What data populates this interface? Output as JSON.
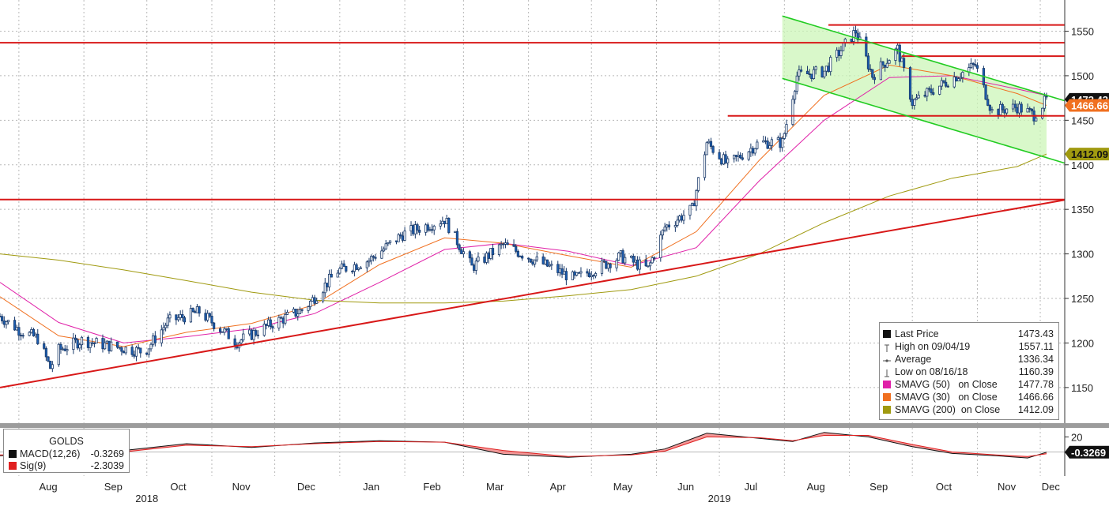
{
  "chart_data": [
    {
      "type": "candlestick",
      "ticker": "GOLDS",
      "ylim": [
        1110,
        1585
      ],
      "yticks": [
        "1150",
        "1200",
        "1250",
        "1300",
        "1350",
        "1400",
        "1450",
        "1500",
        "1550"
      ],
      "month_labels": [
        "Aug",
        "Sep",
        "Oct",
        "Nov",
        "Dec",
        "Jan",
        "Feb",
        "Mar",
        "Apr",
        "May",
        "Jun",
        "Jul",
        "Aug",
        "Sep",
        "Oct",
        "Nov",
        "Dec"
      ],
      "year_labels": [
        "2018",
        "2019"
      ],
      "price_path": [
        [
          "2018-07-23",
          1230
        ],
        [
          "2018-08-01",
          1215
        ],
        [
          "2018-08-10",
          1205
        ],
        [
          "2018-08-16",
          1172
        ],
        [
          "2018-08-20",
          1192
        ],
        [
          "2018-08-31",
          1203
        ],
        [
          "2018-09-15",
          1196
        ],
        [
          "2018-09-30",
          1190
        ],
        [
          "2018-10-11",
          1224
        ],
        [
          "2018-10-26",
          1235
        ],
        [
          "2018-11-13",
          1201
        ],
        [
          "2018-11-30",
          1222
        ],
        [
          "2018-12-15",
          1238
        ],
        [
          "2018-12-31",
          1281
        ],
        [
          "2019-01-15",
          1293
        ],
        [
          "2019-01-31",
          1322
        ],
        [
          "2019-02-20",
          1339
        ],
        [
          "2019-03-05",
          1285
        ],
        [
          "2019-03-20",
          1310
        ],
        [
          "2019-04-05",
          1292
        ],
        [
          "2019-04-23",
          1272
        ],
        [
          "2019-05-15",
          1297
        ],
        [
          "2019-05-28",
          1283
        ],
        [
          "2019-06-05",
          1330
        ],
        [
          "2019-06-18",
          1350
        ],
        [
          "2019-06-25",
          1425
        ],
        [
          "2019-07-05",
          1400
        ],
        [
          "2019-07-20",
          1425
        ],
        [
          "2019-07-31",
          1425
        ],
        [
          "2019-08-07",
          1500
        ],
        [
          "2019-08-20",
          1505
        ],
        [
          "2019-09-04",
          1550
        ],
        [
          "2019-09-12",
          1500
        ],
        [
          "2019-09-24",
          1530
        ],
        [
          "2019-10-01",
          1470
        ],
        [
          "2019-10-15",
          1490
        ],
        [
          "2019-10-31",
          1512
        ],
        [
          "2019-11-08",
          1460
        ],
        [
          "2019-11-20",
          1465
        ],
        [
          "2019-11-28",
          1456
        ],
        [
          "2019-12-04",
          1473
        ]
      ],
      "moving_averages": [
        {
          "name": "SMAVG (50)  on Close",
          "color": "#e020a8",
          "points": [
            [
              "2018-07-23",
              1268
            ],
            [
              "2018-08-20",
              1223
            ],
            [
              "2018-09-20",
              1200
            ],
            [
              "2018-10-20",
              1207
            ],
            [
              "2018-11-20",
              1216
            ],
            [
              "2018-12-20",
              1233
            ],
            [
              "2019-01-20",
              1268
            ],
            [
              "2019-02-20",
              1305
            ],
            [
              "2019-03-20",
              1312
            ],
            [
              "2019-04-20",
              1303
            ],
            [
              "2019-05-20",
              1287
            ],
            [
              "2019-06-20",
              1307
            ],
            [
              "2019-07-20",
              1382
            ],
            [
              "2019-08-20",
              1450
            ],
            [
              "2019-09-20",
              1498
            ],
            [
              "2019-10-20",
              1500
            ],
            [
              "2019-11-20",
              1485
            ],
            [
              "2019-12-04",
              1477.78
            ]
          ]
        },
        {
          "name": "SMAVG (30)  on Close",
          "color": "#f07020",
          "points": [
            [
              "2018-07-23",
              1252
            ],
            [
              "2018-08-20",
              1208
            ],
            [
              "2018-09-20",
              1196
            ],
            [
              "2018-10-20",
              1212
            ],
            [
              "2018-11-20",
              1222
            ],
            [
              "2018-12-20",
              1243
            ],
            [
              "2019-01-20",
              1288
            ],
            [
              "2019-02-20",
              1318
            ],
            [
              "2019-03-20",
              1312
            ],
            [
              "2019-04-20",
              1298
            ],
            [
              "2019-05-20",
              1285
            ],
            [
              "2019-06-20",
              1325
            ],
            [
              "2019-07-20",
              1405
            ],
            [
              "2019-08-20",
              1478
            ],
            [
              "2019-09-20",
              1512
            ],
            [
              "2019-10-20",
              1500
            ],
            [
              "2019-11-20",
              1480
            ],
            [
              "2019-12-04",
              1466.66
            ]
          ]
        },
        {
          "name": "SMAVG (200)  on Close",
          "color": "#a09a10",
          "points": [
            [
              "2018-07-23",
              1300
            ],
            [
              "2018-08-20",
              1293
            ],
            [
              "2018-09-20",
              1282
            ],
            [
              "2018-10-20",
              1270
            ],
            [
              "2018-11-20",
              1257
            ],
            [
              "2018-12-20",
              1248
            ],
            [
              "2019-01-20",
              1245
            ],
            [
              "2019-02-20",
              1245
            ],
            [
              "2019-03-20",
              1247
            ],
            [
              "2019-04-20",
              1253
            ],
            [
              "2019-05-20",
              1260
            ],
            [
              "2019-06-20",
              1275
            ],
            [
              "2019-07-20",
              1300
            ],
            [
              "2019-08-20",
              1335
            ],
            [
              "2019-09-20",
              1365
            ],
            [
              "2019-10-20",
              1385
            ],
            [
              "2019-11-20",
              1398
            ],
            [
              "2019-12-04",
              1412.09
            ]
          ]
        }
      ],
      "horizontal_levels": [
        1537,
        1361,
        1557,
        1522,
        1455
      ],
      "trendline": {
        "from": [
          "2018-07-23",
          1150
        ],
        "to": [
          "2019-12-04",
          1357
        ]
      },
      "channel": {
        "upper": [
          [
            "2019-07-31",
            1567
          ],
          [
            "2019-12-04",
            1478
          ]
        ],
        "lower": [
          [
            "2019-07-31",
            1497
          ],
          [
            "2019-12-04",
            1408
          ]
        ]
      },
      "price_tags": [
        {
          "value": "1473.43",
          "y": 1473.43,
          "background": "#111111",
          "text_color": "#ffffff"
        },
        {
          "value": "1466.66",
          "y": 1466.66,
          "background": "#f07020",
          "text_color": "#ffffff"
        },
        {
          "value": "1412.09",
          "y": 1412.09,
          "background": "#a09a10",
          "text_color": "#111111"
        }
      ],
      "legend": {
        "rows": [
          {
            "label": "Last Price",
            "value": "1473.43",
            "marker": "box",
            "color": "#111111"
          },
          {
            "label": "High on 09/04/19",
            "value": "1557.11",
            "marker": "high",
            "color": "#555555"
          },
          {
            "label": "Average",
            "value": "1336.34",
            "marker": "avg",
            "color": "#555555"
          },
          {
            "label": "Low on 08/16/18",
            "value": "1160.39",
            "marker": "low",
            "color": "#555555"
          },
          {
            "label": "SMAVG (50)   on Close",
            "value": "1477.78",
            "marker": "box",
            "color": "#e020a8"
          },
          {
            "label": "SMAVG (30)   on Close",
            "value": "1466.66",
            "marker": "box",
            "color": "#f07020"
          },
          {
            "label": "SMAVG (200)  on Close",
            "value": "1412.09",
            "marker": "box",
            "color": "#a09a10"
          }
        ]
      }
    },
    {
      "type": "line",
      "ylim": [
        -32,
        32
      ],
      "yticks": [
        "20"
      ],
      "tag": "-0.3269",
      "title": "GOLDS",
      "series": [
        {
          "name": "MACD(12,26)",
          "value": "-0.3269",
          "color": "#111111",
          "points": [
            [
              "2018-07-23",
              -5
            ],
            [
              "2018-08-20",
              -3
            ],
            [
              "2018-09-20",
              2
            ],
            [
              "2018-10-20",
              11
            ],
            [
              "2018-11-20",
              6
            ],
            [
              "2018-12-20",
              12
            ],
            [
              "2019-01-20",
              15
            ],
            [
              "2019-02-20",
              13
            ],
            [
              "2019-03-20",
              -3
            ],
            [
              "2019-04-20",
              -7
            ],
            [
              "2019-05-20",
              -3
            ],
            [
              "2019-06-05",
              4
            ],
            [
              "2019-06-25",
              25
            ],
            [
              "2019-07-20",
              18
            ],
            [
              "2019-08-05",
              14
            ],
            [
              "2019-08-20",
              26
            ],
            [
              "2019-09-10",
              20
            ],
            [
              "2019-10-01",
              7
            ],
            [
              "2019-10-20",
              -2
            ],
            [
              "2019-11-10",
              -5
            ],
            [
              "2019-11-25",
              -8
            ],
            [
              "2019-12-04",
              -0.33
            ]
          ]
        },
        {
          "name": "Sig(9)",
          "value": "-2.3039",
          "color": "#e02020",
          "points": [
            [
              "2018-07-23",
              -4
            ],
            [
              "2018-08-20",
              -3
            ],
            [
              "2018-09-20",
              0
            ],
            [
              "2018-10-20",
              9
            ],
            [
              "2018-11-20",
              7
            ],
            [
              "2018-12-20",
              11
            ],
            [
              "2019-01-20",
              14
            ],
            [
              "2019-02-20",
              13
            ],
            [
              "2019-03-20",
              2
            ],
            [
              "2019-04-20",
              -6
            ],
            [
              "2019-05-20",
              -4
            ],
            [
              "2019-06-05",
              1
            ],
            [
              "2019-06-25",
              20
            ],
            [
              "2019-07-20",
              19
            ],
            [
              "2019-08-05",
              15
            ],
            [
              "2019-08-20",
              22
            ],
            [
              "2019-09-10",
              22
            ],
            [
              "2019-10-01",
              10
            ],
            [
              "2019-10-20",
              0
            ],
            [
              "2019-11-10",
              -4
            ],
            [
              "2019-11-25",
              -6
            ],
            [
              "2019-12-04",
              -2.3
            ]
          ]
        }
      ]
    }
  ]
}
